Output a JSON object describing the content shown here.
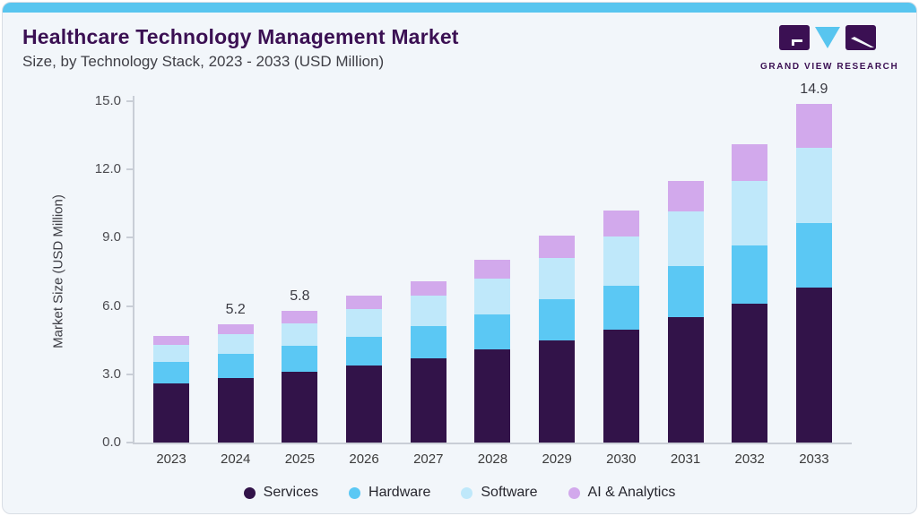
{
  "header": {
    "title": "Healthcare Technology Management Market",
    "subtitle": "Size, by Technology Stack, 2023 - 2033 (USD Million)"
  },
  "logo": {
    "text": "GRAND VIEW RESEARCH",
    "purple": "#3b1053",
    "blue": "#58c5ef"
  },
  "chart_data": {
    "type": "bar",
    "stacked": true,
    "title": "Healthcare Technology Management Market Size, by Technology Stack, 2023 - 2033 (USD Million)",
    "ylabel": "Market Size (USD Million)",
    "ylim": [
      0,
      15
    ],
    "yticks": [
      "0.0",
      "3.0",
      "6.0",
      "9.0",
      "12.0",
      "15.0"
    ],
    "grid": false,
    "legend_position": "bottom",
    "categories": [
      "2023",
      "2024",
      "2025",
      "2026",
      "2027",
      "2028",
      "2029",
      "2030",
      "2031",
      "2032",
      "2033"
    ],
    "series": [
      {
        "name": "Services",
        "color": "#321349",
        "values": [
          2.6,
          2.85,
          3.1,
          3.4,
          3.7,
          4.1,
          4.5,
          4.95,
          5.5,
          6.1,
          6.8
        ]
      },
      {
        "name": "Hardware",
        "color": "#5bc8f4",
        "values": [
          0.95,
          1.05,
          1.15,
          1.25,
          1.4,
          1.55,
          1.8,
          1.95,
          2.25,
          2.55,
          2.85
        ]
      },
      {
        "name": "Software",
        "color": "#bfe8fa",
        "values": [
          0.75,
          0.85,
          1.0,
          1.2,
          1.35,
          1.55,
          1.8,
          2.15,
          2.4,
          2.85,
          3.3
        ]
      },
      {
        "name": "AI & Analytics",
        "color": "#d2a9ec",
        "values": [
          0.4,
          0.45,
          0.55,
          0.6,
          0.65,
          0.85,
          1.0,
          1.15,
          1.35,
          1.6,
          1.95
        ]
      }
    ],
    "totals": [
      4.7,
      5.2,
      5.8,
      6.45,
      7.1,
      8.05,
      9.1,
      10.2,
      11.5,
      13.1,
      14.9
    ],
    "bar_labels": {
      "2024": "5.2",
      "2025": "5.8",
      "2033": "14.9"
    }
  }
}
